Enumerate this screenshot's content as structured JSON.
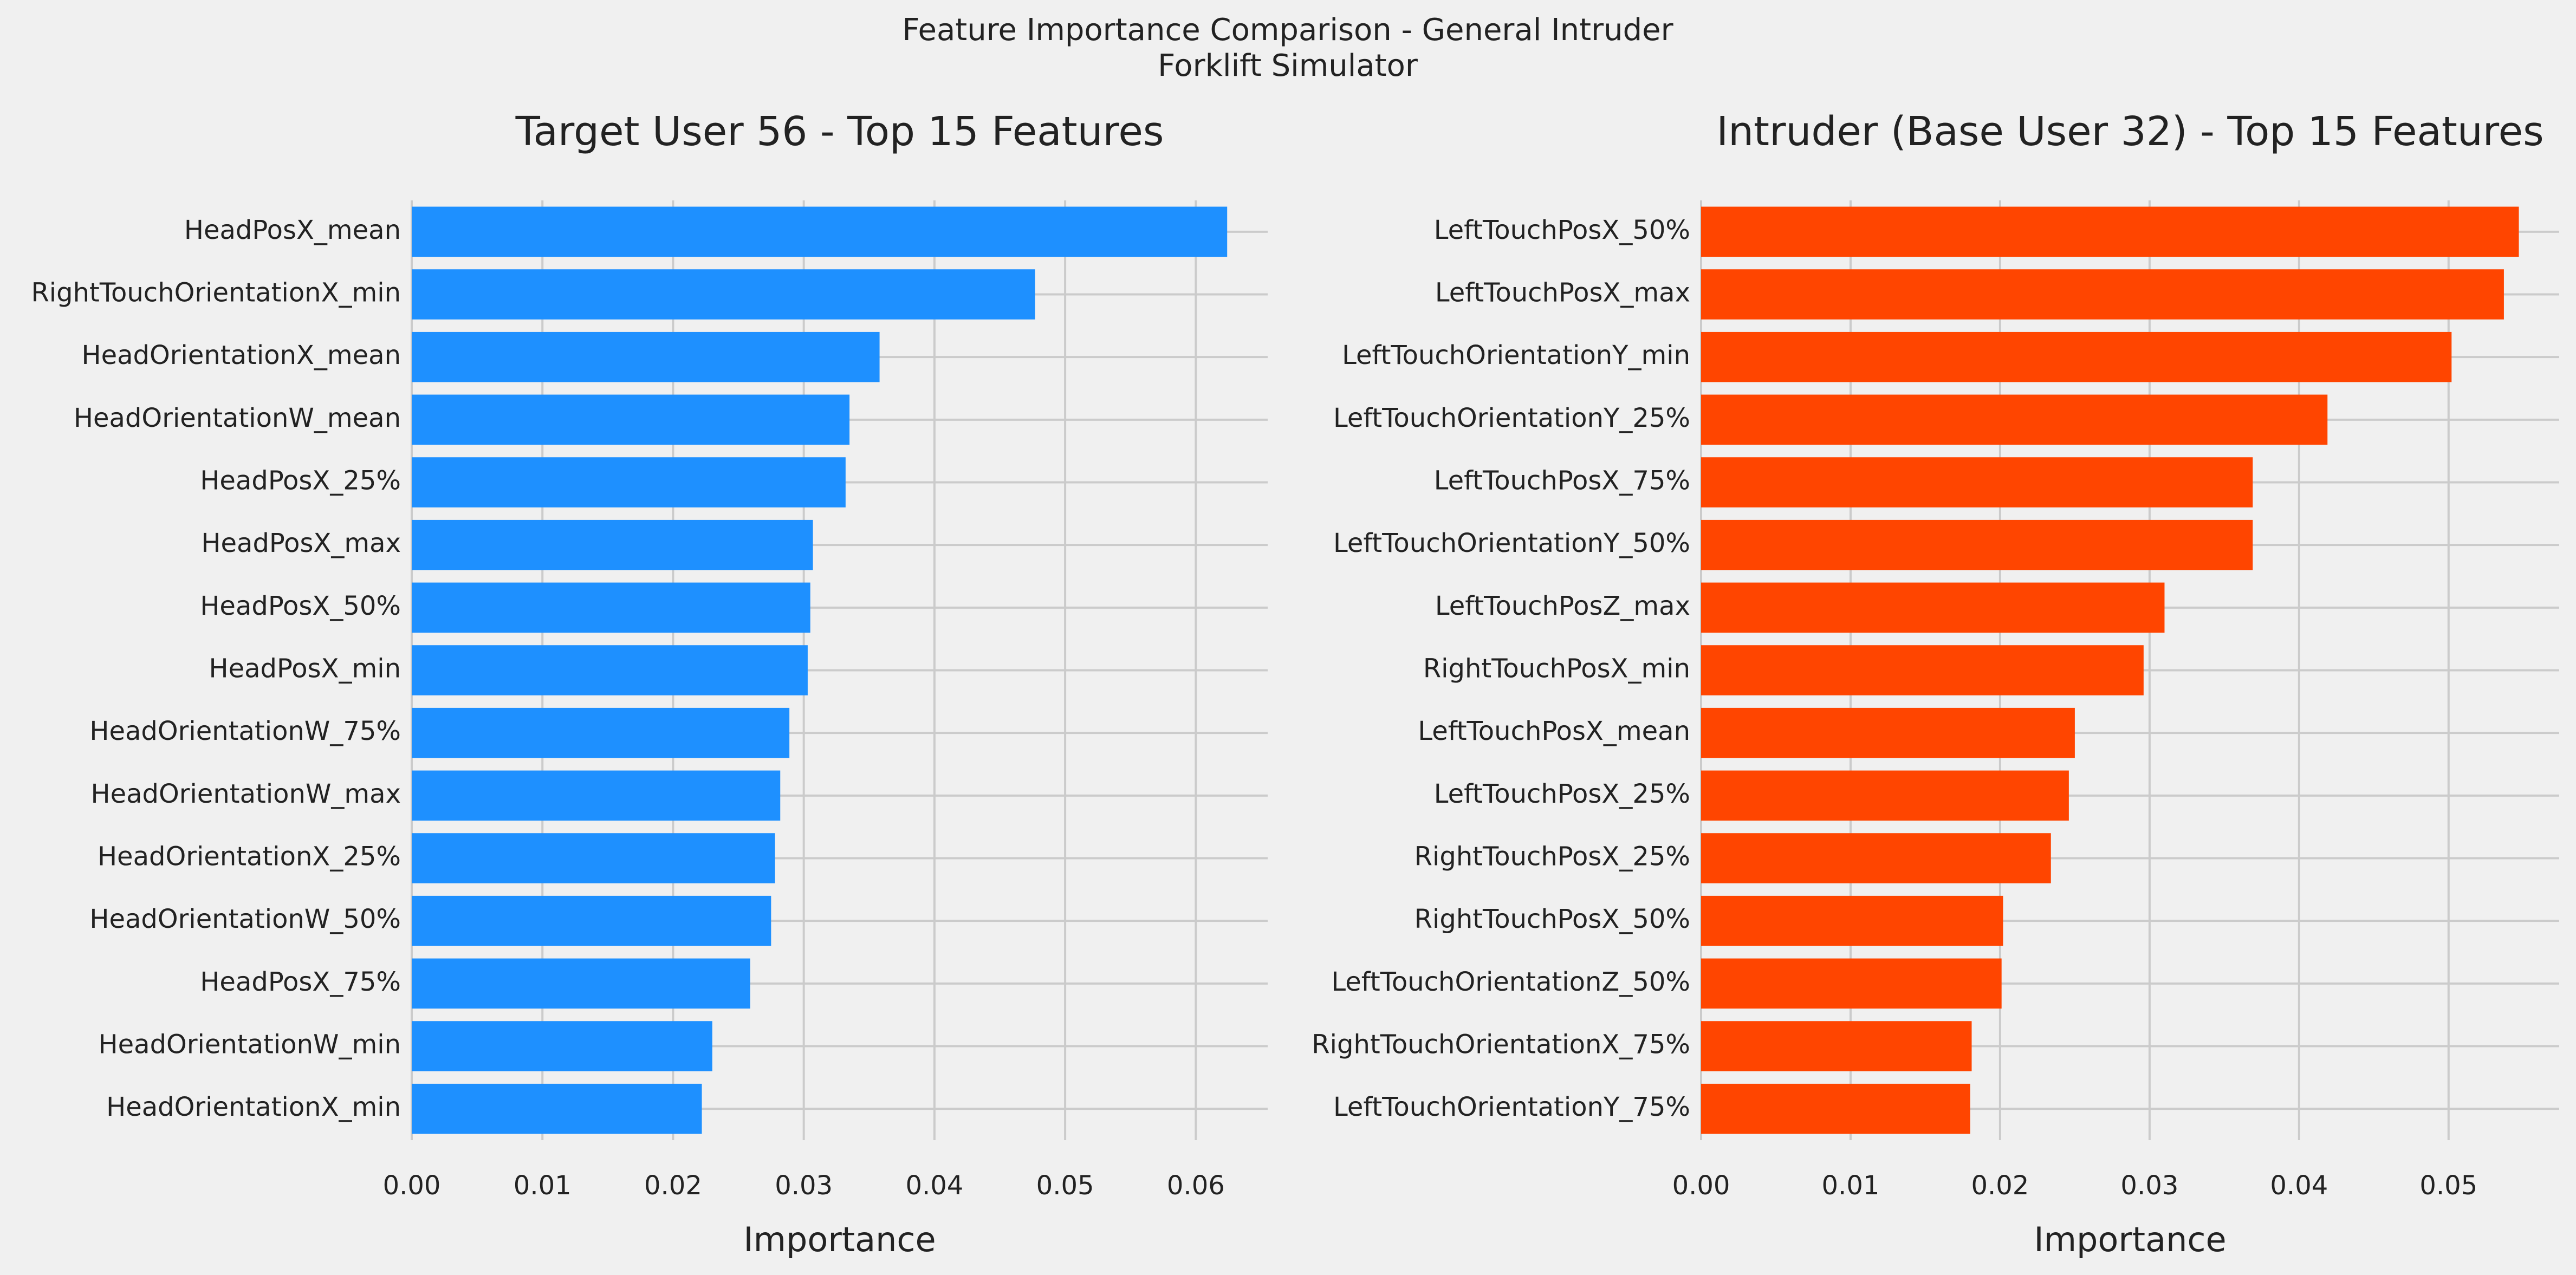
{
  "figure": {
    "suptitle_line1": "Feature Importance Comparison - General Intruder",
    "suptitle_line2": "Forklift Simulator"
  },
  "chart_data": [
    {
      "type": "bar",
      "orientation": "horizontal",
      "title": "Target User 56 - Top 15 Features",
      "xlabel": "Importance",
      "ylabel": "",
      "xlim": [
        0,
        0.0655
      ],
      "xticks": [
        0.0,
        0.01,
        0.02,
        0.03,
        0.04,
        0.05,
        0.06
      ],
      "xtick_labels": [
        "0.00",
        "0.01",
        "0.02",
        "0.03",
        "0.04",
        "0.05",
        "0.06"
      ],
      "grid": true,
      "color": "#1e90ff",
      "categories": [
        "HeadPosX_mean",
        "RightTouchOrientationX_min",
        "HeadOrientationX_mean",
        "HeadOrientationW_mean",
        "HeadPosX_25%",
        "HeadPosX_max",
        "HeadPosX_50%",
        "HeadPosX_min",
        "HeadOrientationW_75%",
        "HeadOrientationW_max",
        "HeadOrientationX_25%",
        "HeadOrientationW_50%",
        "HeadPosX_75%",
        "HeadOrientationW_min",
        "HeadOrientationX_min"
      ],
      "values": [
        0.0624,
        0.0477,
        0.0358,
        0.0335,
        0.0332,
        0.0307,
        0.0305,
        0.0303,
        0.0289,
        0.0282,
        0.0278,
        0.0275,
        0.0259,
        0.023,
        0.0222
      ]
    },
    {
      "type": "bar",
      "orientation": "horizontal",
      "title": "Intruder (Base User 32) - Top 15 Features",
      "xlabel": "Importance",
      "ylabel": "",
      "xlim": [
        0,
        0.0574
      ],
      "xticks": [
        0.0,
        0.01,
        0.02,
        0.03,
        0.04,
        0.05
      ],
      "xtick_labels": [
        "0.00",
        "0.01",
        "0.02",
        "0.03",
        "0.04",
        "0.05"
      ],
      "grid": true,
      "color": "#ff4500",
      "categories": [
        "LeftTouchPosX_50%",
        "LeftTouchPosX_max",
        "LeftTouchOrientationY_min",
        "LeftTouchOrientationY_25%",
        "LeftTouchPosX_75%",
        "LeftTouchOrientationY_50%",
        "LeftTouchPosZ_max",
        "RightTouchPosX_min",
        "LeftTouchPosX_mean",
        "LeftTouchPosX_25%",
        "RightTouchPosX_25%",
        "RightTouchPosX_50%",
        "LeftTouchOrientationZ_50%",
        "RightTouchOrientationX_75%",
        "LeftTouchOrientationY_75%"
      ],
      "values": [
        0.0547,
        0.0537,
        0.0502,
        0.0419,
        0.0369,
        0.0369,
        0.031,
        0.0296,
        0.025,
        0.0246,
        0.0234,
        0.0202,
        0.0201,
        0.0181,
        0.018
      ]
    }
  ]
}
